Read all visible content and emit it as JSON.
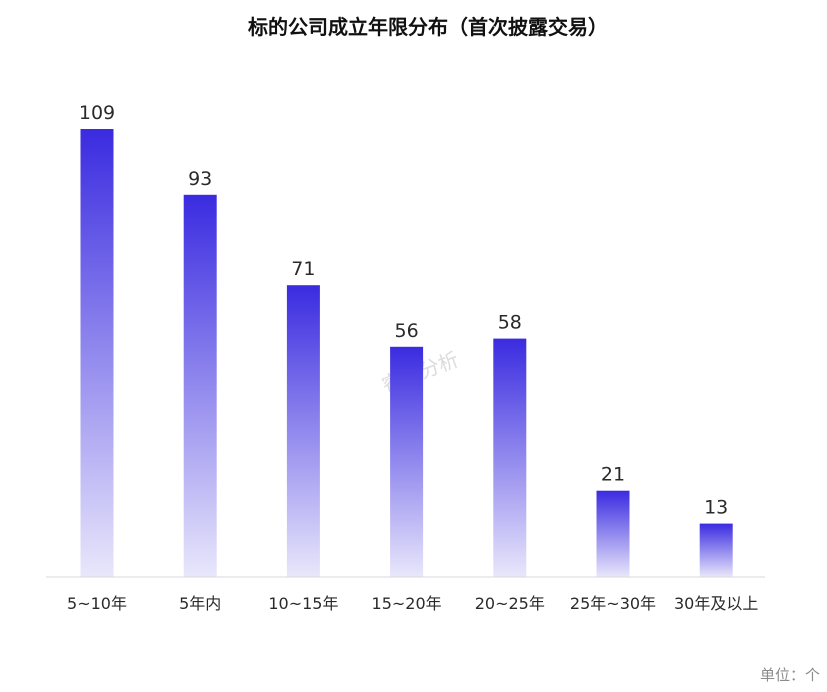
{
  "chart_data": {
    "type": "bar",
    "title": "标的公司成立年限分布（首次披露交易）",
    "categories": [
      "5~10年",
      "5年内",
      "10~15年",
      "15~20年",
      "20~25年",
      "25年~30年",
      "30年及以上"
    ],
    "values": [
      109,
      93,
      71,
      56,
      58,
      21,
      13
    ],
    "xlabel": "",
    "ylabel": "",
    "ylim": [
      0,
      109
    ],
    "unit_label": "单位：个",
    "watermark": "睿兽分析",
    "colors": {
      "bar_top": "#3a2be0",
      "bar_bottom": "#e9e7fb",
      "axis": "#d9d9d9"
    }
  }
}
